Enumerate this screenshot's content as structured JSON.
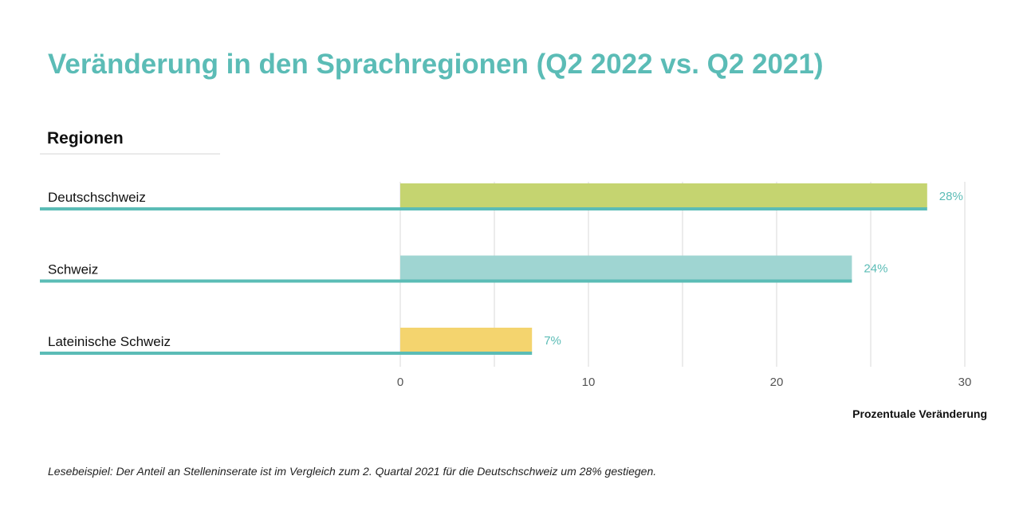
{
  "chart_data": {
    "type": "bar",
    "orientation": "horizontal",
    "title": "Veränderung in den Sprachregionen (Q2 2022 vs. Q2 2021)",
    "category_header": "Regionen",
    "categories": [
      "Deutschschweiz",
      "Schweiz",
      "Lateinische Schweiz"
    ],
    "values": [
      28,
      24,
      7
    ],
    "data_labels": [
      "28%",
      "24%",
      "7%"
    ],
    "colors": [
      "#c5d470",
      "#9fd5d2",
      "#f4d46e"
    ],
    "underline_color": "#5bbcb6",
    "xlabel": "Prozentuale Veränderung",
    "xlim": [
      0,
      30
    ],
    "xticks": [
      0,
      10,
      20,
      30
    ],
    "grid": true,
    "footnote": "Lesebeispiel: Der Anteil an Stelleninserate ist im Vergleich zum 2. Quartal 2021 für die Deutschschweiz um 28% gestiegen."
  }
}
